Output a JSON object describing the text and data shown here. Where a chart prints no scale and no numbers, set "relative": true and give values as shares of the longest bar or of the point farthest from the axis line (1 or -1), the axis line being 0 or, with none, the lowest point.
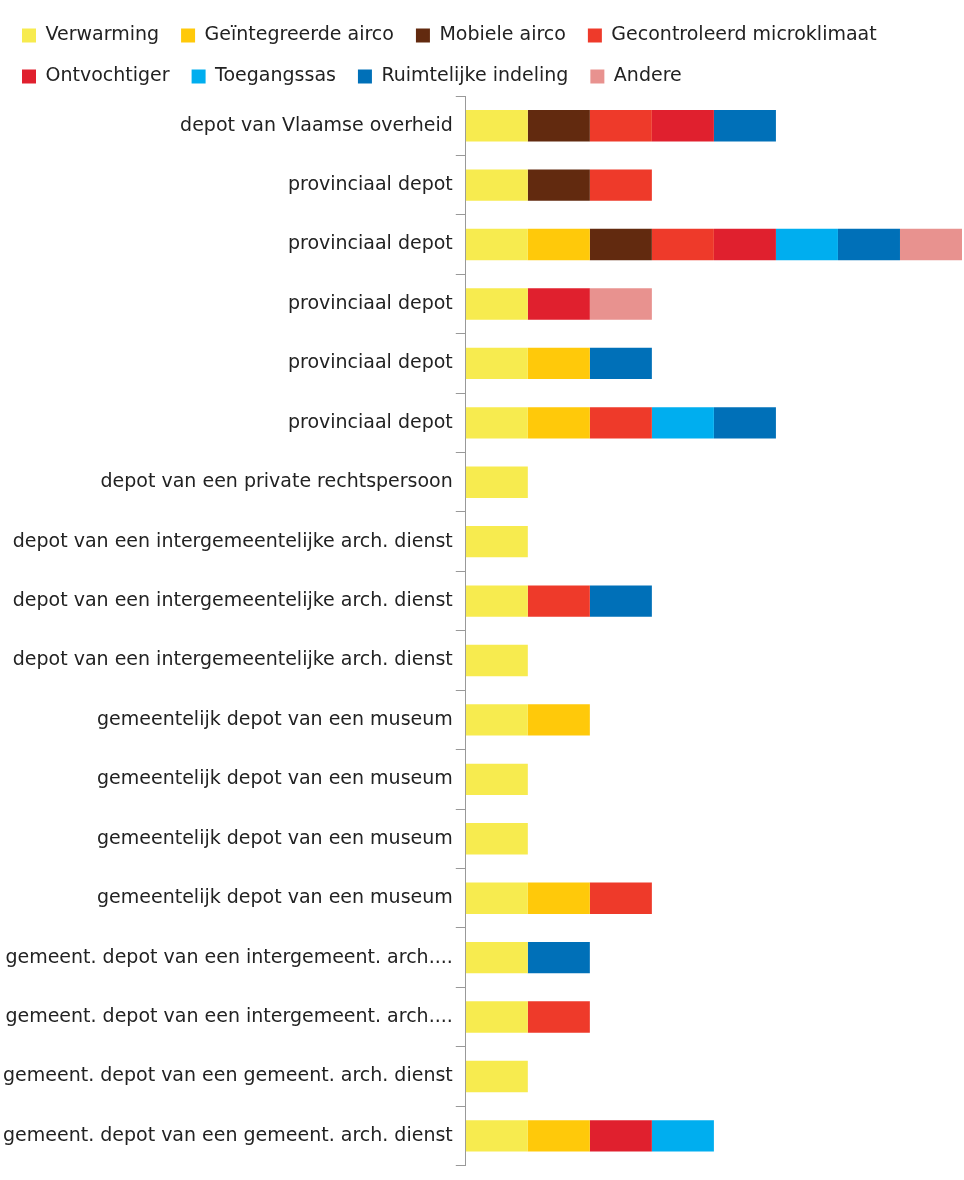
{
  "chart_data": {
    "type": "bar",
    "orientation": "horizontal",
    "stacked": true,
    "relative": true,
    "legend": "top",
    "categories": [
      "depot van Vlaamse overheid",
      "provinciaal depot",
      "provinciaal depot",
      "provinciaal depot",
      "provinciaal depot",
      "provinciaal depot",
      "depot van een private rechtspersoon",
      "depot van een intergemeentelijke arch. dienst",
      "depot van een intergemeentelijke arch. dienst",
      "depot van een intergemeentelijke arch. dienst",
      "gemeentelijk depot van een museum",
      "gemeentelijk depot van een museum",
      "gemeentelijk depot van een museum",
      "gemeentelijk depot van een museum",
      "gemeent. depot van een intergemeent. arch....",
      "gemeent. depot van een intergemeent. arch....",
      "gemeent. depot van een gemeent. arch. dienst",
      "gemeent. depot van een gemeent. arch. dienst"
    ],
    "series": [
      {
        "name": "Verwarming",
        "color": "#f7eb4f",
        "values": [
          0.125,
          0.125,
          0.125,
          0.125,
          0.125,
          0.125,
          0.125,
          0.125,
          0.125,
          0.125,
          0.125,
          0.125,
          0.125,
          0.125,
          0.125,
          0.125,
          0.125,
          0.125
        ]
      },
      {
        "name": "Geïntegreerde airco",
        "color": "#ffc90a",
        "values": [
          null,
          null,
          0.125,
          null,
          0.125,
          0.125,
          null,
          null,
          null,
          null,
          0.125,
          null,
          null,
          0.125,
          null,
          null,
          null,
          0.125
        ]
      },
      {
        "name": "Mobiele airco",
        "color": "#622a0f",
        "values": [
          0.125,
          0.125,
          0.125,
          null,
          null,
          null,
          null,
          null,
          null,
          null,
          null,
          null,
          null,
          null,
          null,
          null,
          null,
          null
        ]
      },
      {
        "name": "Gecontroleerd microklimaat",
        "color": "#ee3a2a",
        "values": [
          0.125,
          0.125,
          0.125,
          null,
          null,
          0.125,
          null,
          null,
          0.125,
          null,
          null,
          null,
          null,
          0.125,
          null,
          0.125,
          null,
          null
        ]
      },
      {
        "name": "Ontvochtiger",
        "color": "#e0202e",
        "values": [
          0.125,
          null,
          0.125,
          0.125,
          null,
          null,
          null,
          null,
          null,
          null,
          null,
          null,
          null,
          null,
          null,
          null,
          null,
          0.125
        ]
      },
      {
        "name": "Toegangssas",
        "color": "#00aeef",
        "values": [
          null,
          null,
          0.125,
          null,
          null,
          0.125,
          null,
          null,
          null,
          null,
          null,
          null,
          null,
          null,
          null,
          null,
          null,
          0.125
        ]
      },
      {
        "name": "Ruimtelijke indeling",
        "color": "#0070b8",
        "values": [
          0.125,
          null,
          0.125,
          null,
          0.125,
          0.125,
          null,
          null,
          0.125,
          null,
          null,
          null,
          null,
          null,
          0.125,
          null,
          null,
          null
        ]
      },
      {
        "name": "Andere",
        "color": "#e8928f",
        "values": [
          null,
          null,
          0.125,
          0.125,
          null,
          null,
          null,
          null,
          null,
          null,
          null,
          null,
          null,
          null,
          null,
          null,
          null,
          null
        ]
      }
    ]
  }
}
